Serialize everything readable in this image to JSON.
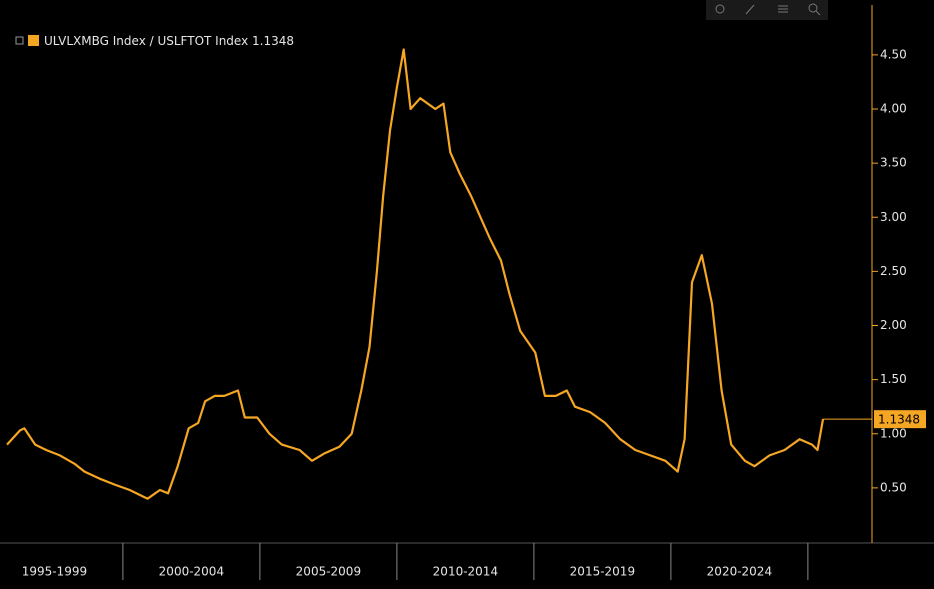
{
  "chart_data": {
    "type": "line",
    "series": [
      {
        "name": "ULVLXMBG Index / USLFTOT Index",
        "color": "#f5a623",
        "x": [
          1995.77,
          1996.24,
          1996.4,
          1996.8,
          1997.2,
          1997.7,
          1998.25,
          1998.6,
          1999.2,
          1999.7,
          2000.25,
          2000.9,
          2001.35,
          2001.65,
          2002.0,
          2002.4,
          2002.75,
          2003.0,
          2003.35,
          2003.7,
          2004.2,
          2004.45,
          2004.9,
          2005.35,
          2005.8,
          2006.45,
          2006.9,
          2007.37,
          2007.9,
          2008.35,
          2008.7,
          2009.0,
          2009.27,
          2009.5,
          2009.75,
          2010.0,
          2010.25,
          2010.5,
          2010.85,
          2011.4,
          2011.7,
          2011.95,
          2012.3,
          2012.7,
          2013.05,
          2013.4,
          2013.8,
          2014.1,
          2014.5,
          2015.05,
          2015.4,
          2015.8,
          2016.2,
          2016.5,
          2017.05,
          2017.6,
          2018.15,
          2018.7,
          2019.25,
          2019.8,
          2020.25,
          2020.5,
          2020.77,
          2021.13,
          2021.5,
          2021.85,
          2022.2,
          2022.7,
          2023.05,
          2023.6,
          2024.15,
          2024.7,
          2025.15,
          2025.35,
          2025.55
        ],
        "values": [
          0.9,
          1.03,
          1.05,
          0.9,
          0.85,
          0.8,
          0.72,
          0.65,
          0.58,
          0.53,
          0.48,
          0.4,
          0.48,
          0.45,
          0.7,
          1.05,
          1.1,
          1.3,
          1.35,
          1.35,
          1.4,
          1.15,
          1.15,
          1.0,
          0.9,
          0.85,
          0.75,
          0.82,
          0.88,
          1.0,
          1.4,
          1.8,
          2.5,
          3.2,
          3.8,
          4.2,
          4.55,
          4.0,
          4.1,
          4.0,
          4.05,
          3.6,
          3.4,
          3.2,
          3.0,
          2.8,
          2.6,
          2.3,
          1.95,
          1.75,
          1.35,
          1.35,
          1.4,
          1.25,
          1.2,
          1.1,
          0.95,
          0.85,
          0.8,
          0.75,
          0.65,
          0.95,
          2.4,
          2.65,
          2.2,
          1.4,
          0.9,
          0.75,
          0.7,
          0.8,
          0.85,
          0.95,
          0.9,
          0.85,
          1.1348
        ]
      }
    ],
    "xlim": [
      1995.77,
      2027.34
    ],
    "xticks": [
      {
        "value": 1997.5,
        "label": "1995-1999"
      },
      {
        "value": 2002.5,
        "label": "2000-2004"
      },
      {
        "value": 2007.5,
        "label": "2005-2009"
      },
      {
        "value": 2012.5,
        "label": "2010-2014"
      },
      {
        "value": 2017.5,
        "label": "2015-2019"
      },
      {
        "value": 2022.5,
        "label": "2020-2024"
      }
    ],
    "ylim": [
      0,
      5
    ],
    "yticks": [
      {
        "value": 0.5,
        "label": "0.50"
      },
      {
        "value": 1.0,
        "label": "1.00"
      },
      {
        "value": 1.5,
        "label": "1.50"
      },
      {
        "value": 2.0,
        "label": "2.00"
      },
      {
        "value": 2.5,
        "label": "2.50"
      },
      {
        "value": 3.0,
        "label": "3.00"
      },
      {
        "value": 3.5,
        "label": "3.50"
      },
      {
        "value": 4.0,
        "label": "4.00"
      },
      {
        "value": 4.5,
        "label": "4.50"
      }
    ],
    "grid": false,
    "legend": "top-left"
  }
}
